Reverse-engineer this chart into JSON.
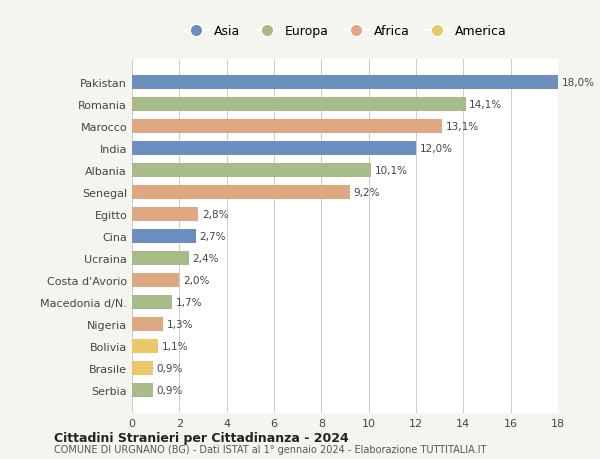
{
  "countries": [
    "Pakistan",
    "Romania",
    "Marocco",
    "India",
    "Albania",
    "Senegal",
    "Egitto",
    "Cina",
    "Ucraina",
    "Costa d'Avorio",
    "Macedonia d/N.",
    "Nigeria",
    "Bolivia",
    "Brasile",
    "Serbia"
  ],
  "values": [
    18.0,
    14.1,
    13.1,
    12.0,
    10.1,
    9.2,
    2.8,
    2.7,
    2.4,
    2.0,
    1.7,
    1.3,
    1.1,
    0.9,
    0.9
  ],
  "labels": [
    "18,0%",
    "14,1%",
    "13,1%",
    "12,0%",
    "10,1%",
    "9,2%",
    "2,8%",
    "2,7%",
    "2,4%",
    "2,0%",
    "1,7%",
    "1,3%",
    "1,1%",
    "0,9%",
    "0,9%"
  ],
  "continents": [
    "Asia",
    "Europa",
    "Africa",
    "Asia",
    "Europa",
    "Africa",
    "Africa",
    "Asia",
    "Europa",
    "Africa",
    "Europa",
    "Africa",
    "America",
    "America",
    "Europa"
  ],
  "colors": {
    "Asia": "#6b8ebf",
    "Europa": "#a8bc8a",
    "Africa": "#e0a882",
    "America": "#e8c86a"
  },
  "legend_order": [
    "Asia",
    "Europa",
    "Africa",
    "America"
  ],
  "title1": "Cittadini Stranieri per Cittadinanza - 2024",
  "title2": "COMUNE DI URGNANO (BG) - Dati ISTAT al 1° gennaio 2024 - Elaborazione TUTTITALIA.IT",
  "xlim": [
    0,
    18
  ],
  "xticks": [
    0,
    2,
    4,
    6,
    8,
    10,
    12,
    14,
    16,
    18
  ],
  "background_color": "#f5f5f0",
  "bar_background": "#ffffff",
  "grid_color": "#cccccc"
}
